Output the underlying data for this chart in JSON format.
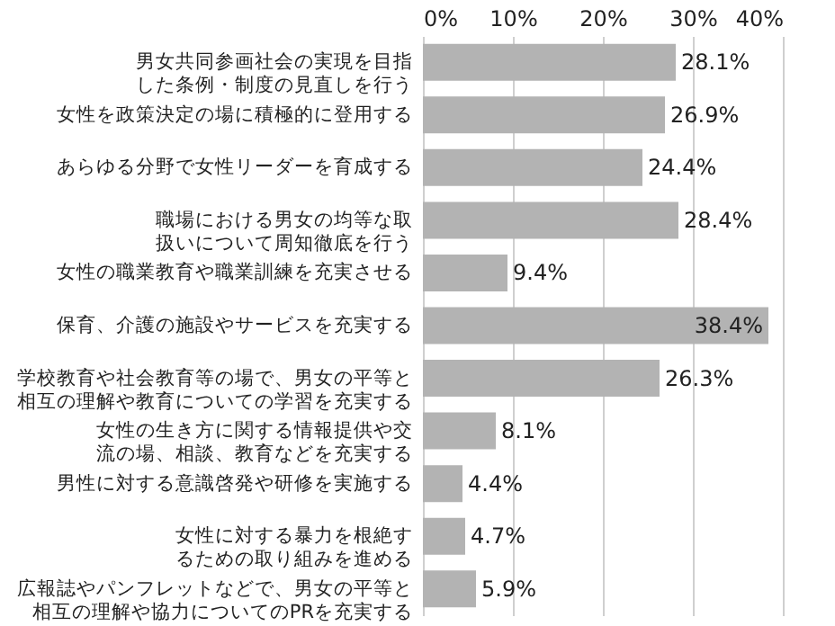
{
  "chart_data": {
    "type": "bar",
    "orientation": "horizontal",
    "categories": [
      "男女共同参画社会の実現を目指した条例・制度の見直しを行う",
      "女性を政策決定の場に積極的に登用する",
      "あらゆる分野で女性リーダーを育成する",
      "職場における男女の均等な取扱いについて周知徹底を行う",
      "女性の職業教育や職業訓練を充実させる",
      "保育、介護の施設やサービスを充実する",
      "学校教育や社会教育等の場で、男女の平等と相互の理解や教育についての学習を充実する",
      "女性の生き方に関する情報提供や交流の場、相談、教育などを充実する",
      "男性に対する意識啓発や研修を実施する",
      "女性に対する暴力を根絶するための取り組みを進める",
      "広報誌やパンフレットなどで、男女の平等と相互の理解や協力についてのPRを充実する"
    ],
    "values": [
      28.1,
      26.9,
      24.4,
      28.4,
      9.4,
      38.4,
      26.3,
      8.1,
      4.4,
      4.7,
      5.9
    ],
    "value_labels": [
      "28.1%",
      "26.9%",
      "24.4%",
      "28.4%",
      "9.4%",
      "38.4%",
      "26.3%",
      "8.1%",
      "4.4%",
      "4.7%",
      "5.9%"
    ],
    "color": "#b3b3b3",
    "xlim": [
      0,
      40
    ],
    "xticks": [
      {
        "value": 0,
        "label": "0%"
      },
      {
        "value": 10,
        "label": "10%"
      },
      {
        "value": 20,
        "label": "20%"
      },
      {
        "value": 30,
        "label": "30%"
      },
      {
        "value": 40,
        "label": "40%"
      }
    ],
    "grid": "x"
  }
}
